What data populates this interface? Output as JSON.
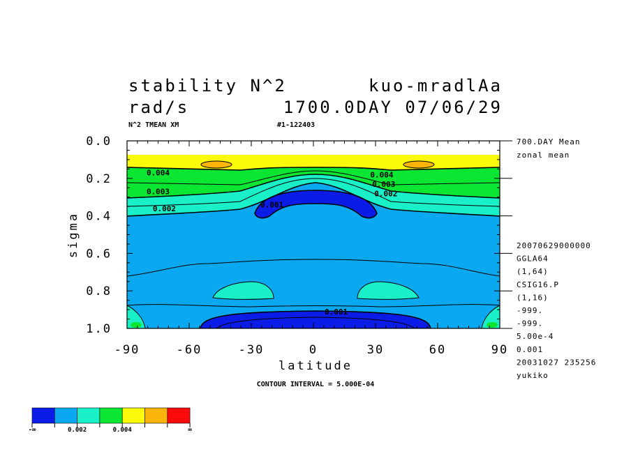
{
  "header": {
    "title_left_1": "stability N^2",
    "title_right_1": "kuo-mradlAa",
    "title_left_2": "rad/s",
    "title_right_2": "1700.0DAY 07/06/29",
    "sub_left": "N^2 TMEAN XM",
    "sub_right": "#1-122403"
  },
  "side_info": {
    "top": [
      "700.DAY Mean",
      "zonal mean"
    ],
    "meta": [
      "20070629000000",
      "GGLA64",
      "(1,64)",
      "CSIG16.P",
      "(1,16)",
      "-999.",
      "-999.",
      "5.00e-4",
      "0.001",
      "20031027 235256",
      "yukiko"
    ]
  },
  "footer": {
    "contour_interval": "CONTOUR INTERVAL = 5.000E-04"
  },
  "legend": {
    "colors": [
      "#0a1ce6",
      "#0aa8f0",
      "#19f0c8",
      "#0ae632",
      "#fafa0a",
      "#fab40a",
      "#fa0a0a"
    ],
    "labels": [
      {
        "text": "-∞",
        "pos": 0
      },
      {
        "text": "0.002",
        "pos": 2
      },
      {
        "text": "0.004",
        "pos": 4
      },
      {
        "text": "∞",
        "pos": 7
      }
    ]
  },
  "chart_data": {
    "type": "heatmap",
    "xlabel": "latitude",
    "ylabel": "sigma",
    "xlim": [
      -90,
      90
    ],
    "ylim": [
      1.0,
      0.0
    ],
    "xticks": [
      -90,
      -60,
      -30,
      0,
      30,
      60,
      90
    ],
    "xtick_labels": [
      "-90",
      "-60",
      "-30",
      "0",
      "30",
      "60",
      "90"
    ],
    "yticks": [
      0.0,
      0.2,
      0.4,
      0.6,
      0.8,
      1.0
    ],
    "ytick_labels": [
      "0.0",
      "0.2",
      "0.4",
      "0.6",
      "0.8",
      "1.0"
    ],
    "contour_labels": [
      {
        "text": "0.004",
        "lat": -75,
        "sigma": 0.17
      },
      {
        "text": "0.003",
        "lat": -75,
        "sigma": 0.27
      },
      {
        "text": "0.002",
        "lat": -72,
        "sigma": 0.36
      },
      {
        "text": "0.001",
        "lat": -20,
        "sigma": 0.34
      },
      {
        "text": "0.004",
        "lat": 33,
        "sigma": 0.18
      },
      {
        "text": "0.003",
        "lat": 34,
        "sigma": 0.23
      },
      {
        "text": "0.002",
        "lat": 35,
        "sigma": 0.28
      },
      {
        "text": "0.001",
        "lat": 11,
        "sigma": 0.91
      }
    ],
    "contour_interval": 0.0005,
    "level_colors": [
      "#0a1ce6",
      "#0aa8f0",
      "#19f0c8",
      "#0ae632",
      "#fafa0a",
      "#fab40a",
      "#fa0a0a"
    ]
  }
}
